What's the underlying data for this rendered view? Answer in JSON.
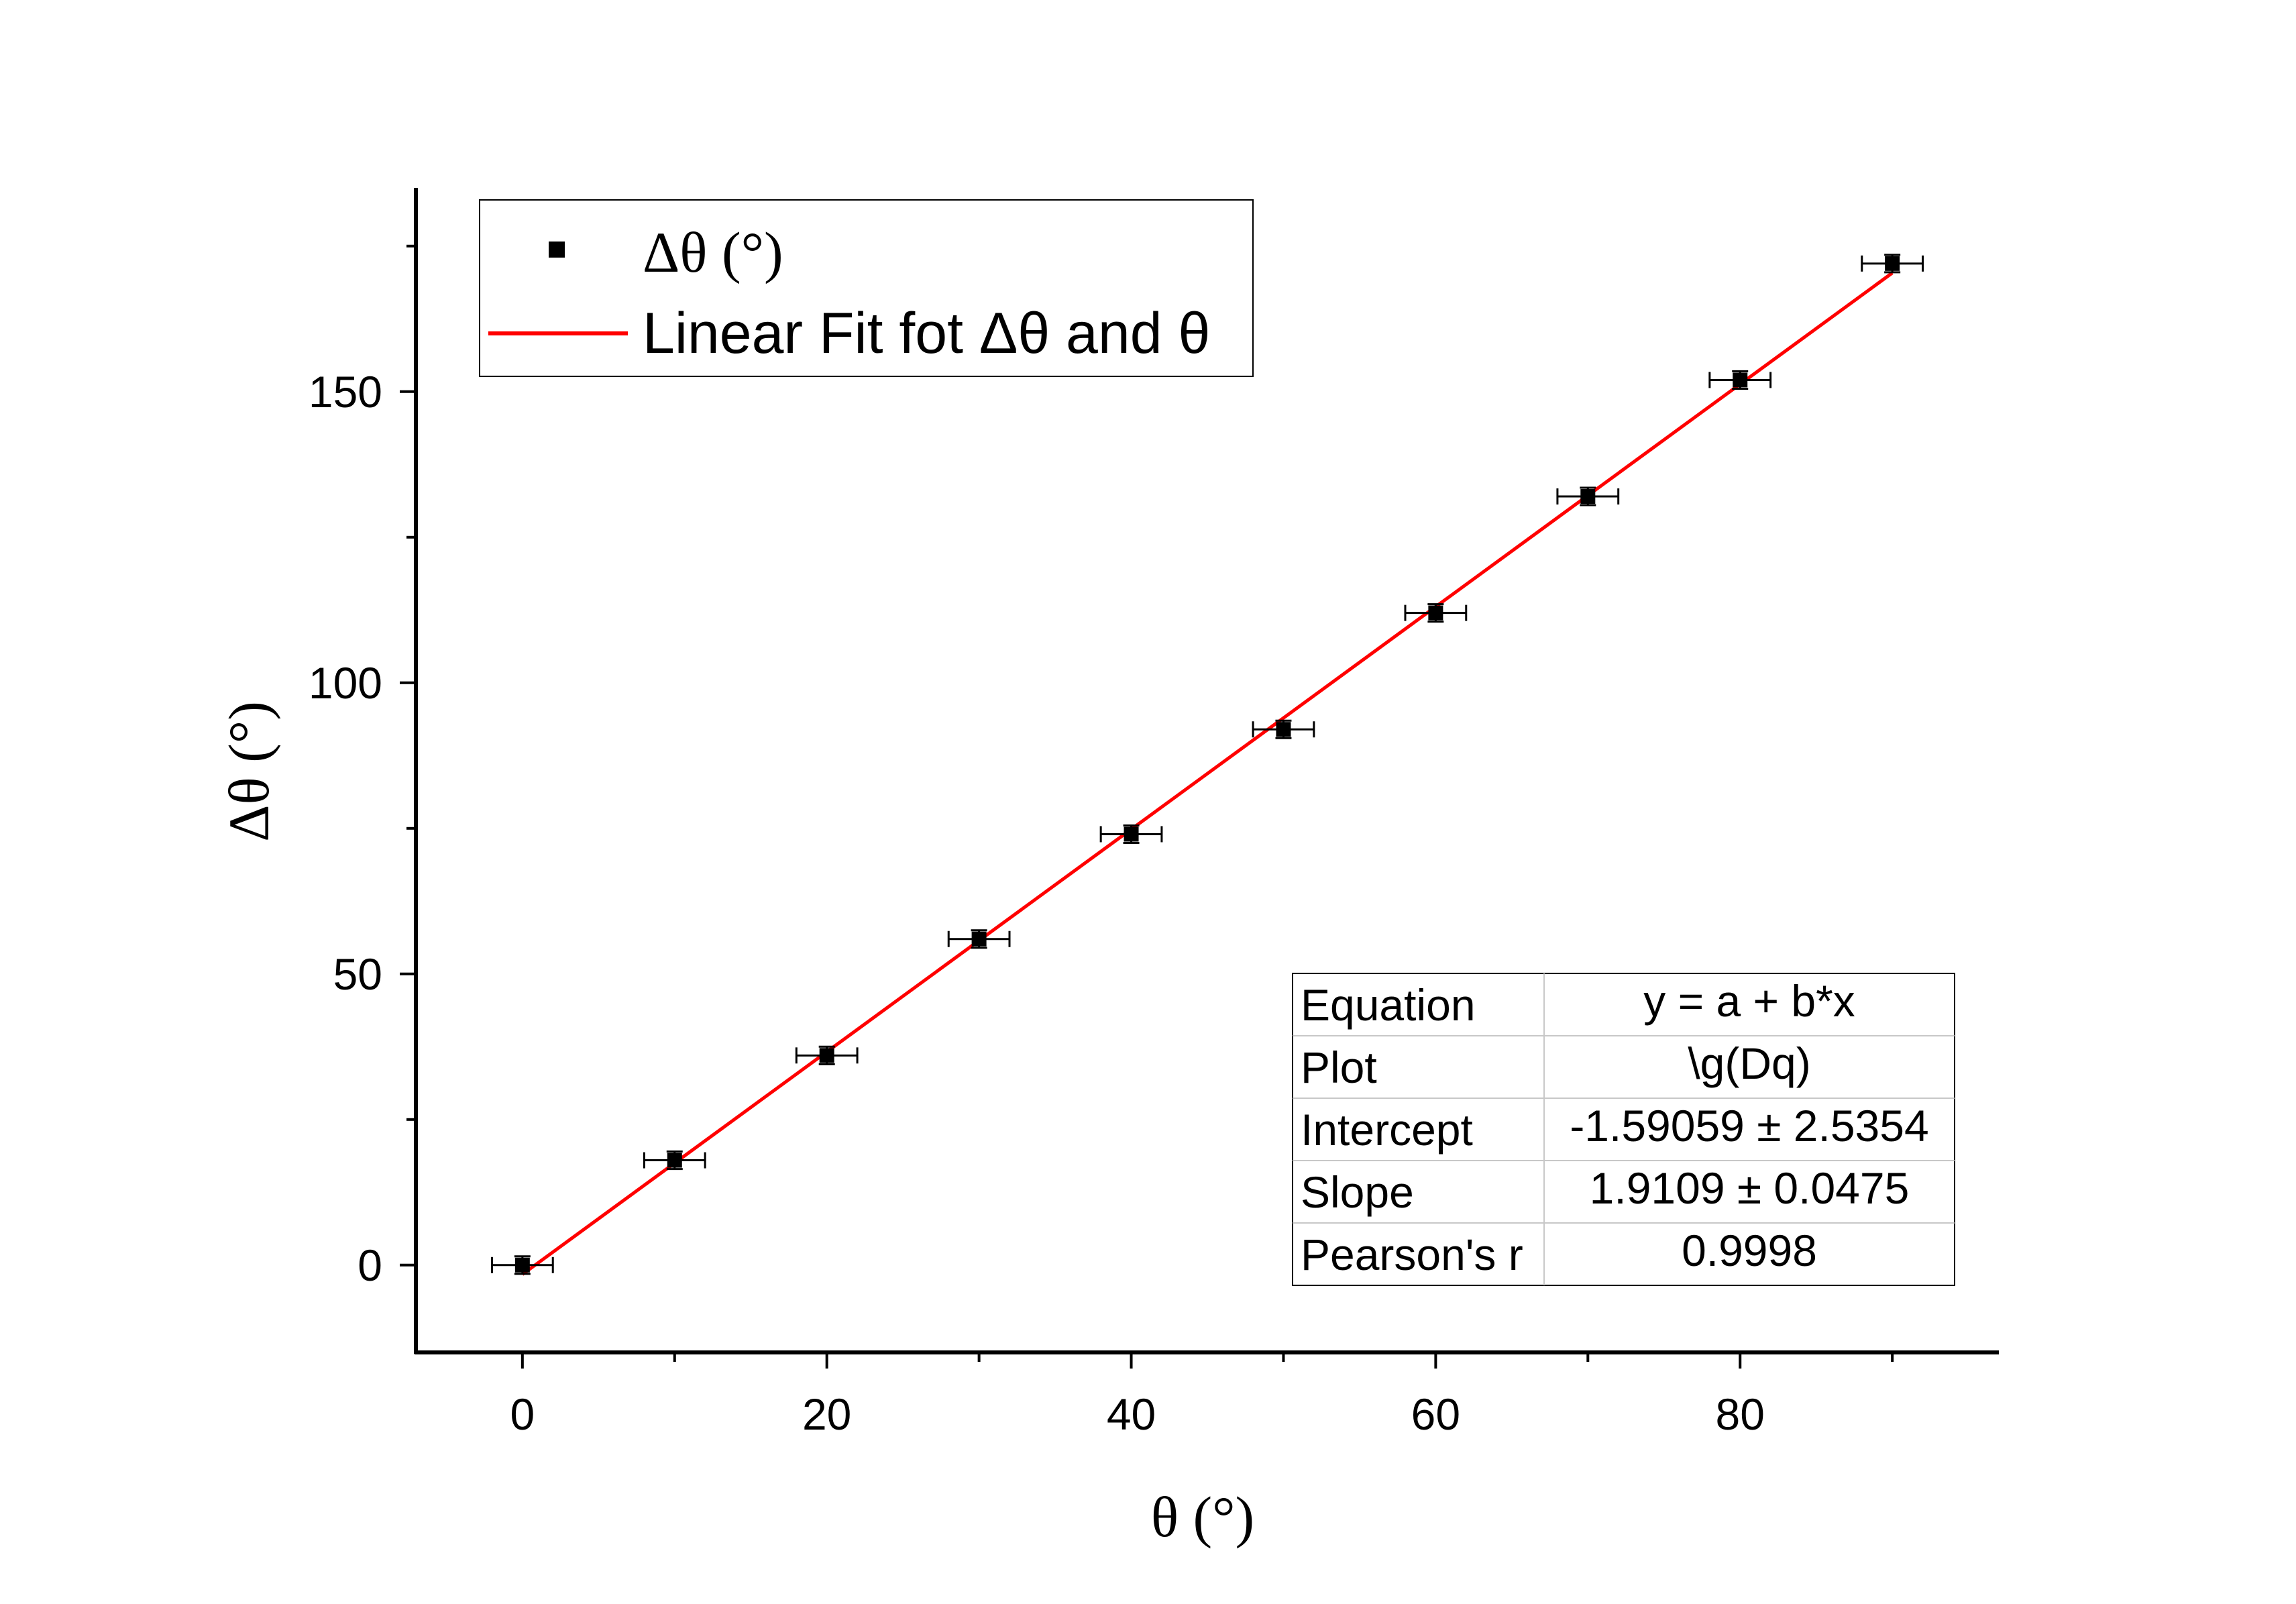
{
  "chart_data": {
    "type": "scatter",
    "xlabel": "θ (°)",
    "ylabel": "Δθ (°)",
    "xlim": [
      -7,
      97
    ],
    "ylim": [
      -15,
      185
    ],
    "x_ticks": [
      0,
      20,
      40,
      60,
      80
    ],
    "y_ticks": [
      0,
      50,
      100,
      150
    ],
    "x_minor_ticks": [
      10,
      30,
      50,
      70,
      90
    ],
    "y_minor_ticks": [
      25,
      75,
      125,
      175
    ],
    "grid": false,
    "legend_position": "top-left",
    "series": [
      {
        "name": "Δθ (°)",
        "kind": "scatter",
        "color": "#000000",
        "x": [
          0,
          10,
          20,
          30,
          40,
          50,
          60,
          70,
          80,
          90
        ],
        "y": [
          0,
          18,
          36,
          56,
          74,
          92,
          112,
          132,
          152,
          172
        ],
        "x_err": [
          2,
          2,
          2,
          2,
          2,
          2,
          2,
          2,
          2,
          2
        ],
        "y_err": [
          1.5,
          1.5,
          1.5,
          1.5,
          1.5,
          1.5,
          1.5,
          1.5,
          1.5,
          1.5
        ]
      },
      {
        "name": "Linear Fit fot Δθ and θ",
        "kind": "line",
        "color": "#ff0000",
        "intercept": -1.59059,
        "slope": 1.9109,
        "x_range": [
          0,
          90
        ]
      }
    ],
    "stats_table": {
      "position": "bottom-right",
      "rows": [
        [
          "Equation",
          "y = a + b*x"
        ],
        [
          "Plot",
          "\\g(Dq)"
        ],
        [
          "Intercept",
          "-1.59059 ± 2.5354"
        ],
        [
          "Slope",
          "1.9109 ± 0.0475"
        ],
        [
          "Pearson's r",
          "0.9998"
        ]
      ]
    }
  }
}
